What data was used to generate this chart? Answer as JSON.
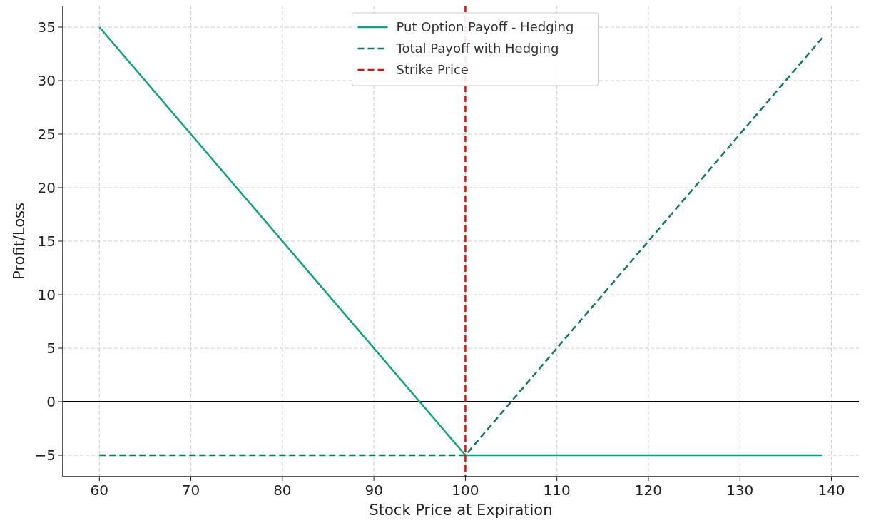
{
  "chart_data": {
    "type": "line",
    "xlabel": "Stock Price at Expiration",
    "ylabel": "Profit/Loss",
    "xlim": [
      56,
      143
    ],
    "xticks": [
      60,
      70,
      80,
      90,
      100,
      110,
      120,
      130,
      140
    ],
    "ylim": [
      -7,
      37
    ],
    "yticks": [
      -5,
      0,
      5,
      10,
      15,
      20,
      25,
      30,
      35
    ],
    "grid": true,
    "legend": "top",
    "series": [
      {
        "name": "Put Option Payoff - Hedging",
        "color": "#10a37f",
        "line_style": "solid",
        "x": [
          60,
          100,
          139
        ],
        "values": [
          35,
          -5,
          -5
        ]
      },
      {
        "name": "Total Payoff with Hedging",
        "color": "#127a5c",
        "line_style": "dashed",
        "x": [
          60,
          100,
          139
        ],
        "values": [
          -5,
          -5,
          34
        ]
      }
    ],
    "ref_lines": [
      {
        "axis": "y",
        "value": 0,
        "color": "#000000",
        "line_style": "solid"
      },
      {
        "axis": "x",
        "value": 100,
        "label": "Strike Price",
        "color": "#ff0000",
        "line_style": "dashed"
      }
    ]
  }
}
